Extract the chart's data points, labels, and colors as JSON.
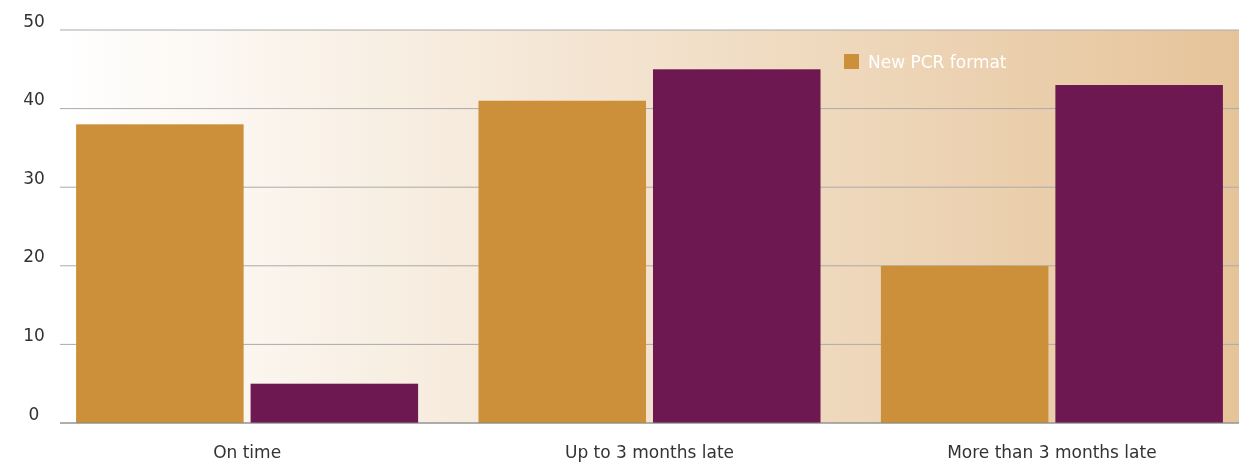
{
  "chart_data": {
    "type": "bar",
    "categories": [
      "On time",
      "Up to 3 months late",
      "More than 3 months late"
    ],
    "series": [
      {
        "name": "New PCR format",
        "color": "#cc8f3a",
        "values": [
          38,
          41,
          20
        ]
      },
      {
        "color": "#6d1850",
        "values": [
          5,
          45,
          43
        ]
      }
    ],
    "ylim": [
      0,
      50
    ],
    "yticks": [
      0,
      10,
      20,
      30,
      40,
      50
    ],
    "grid": "y",
    "legend": "top right"
  }
}
